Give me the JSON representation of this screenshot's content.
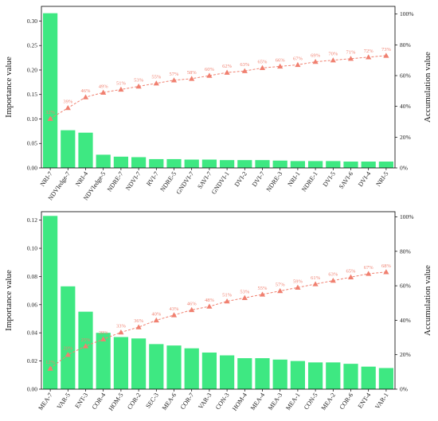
{
  "chart_data": [
    {
      "type": "bar",
      "ylabel": "Importance value",
      "y2label": "Accumulation value",
      "ylim": [
        0,
        0.33
      ],
      "yticks": [
        0.0,
        0.05,
        0.1,
        0.15,
        0.2,
        0.25,
        0.3
      ],
      "ytick_labels": [
        "0.00",
        "0.05",
        "0.10",
        "0.15",
        "0.20",
        "0.25",
        "0.30"
      ],
      "y2lim": [
        0,
        1.05
      ],
      "y2ticks": [
        0,
        0.2,
        0.4,
        0.6,
        0.8,
        1.0
      ],
      "y2tick_labels": [
        "0%",
        "20%",
        "40%",
        "60%",
        "80%",
        "100%"
      ],
      "categories": [
        "NRI-7",
        "NDVIedge-7",
        "NRI-4",
        "NDVIedge-5",
        "NDRE-7",
        "NDVI-7",
        "RVI-7",
        "NDRE-5",
        "GNDVI-7",
        "SAVI-7",
        "GNDVI-1",
        "DVI-2",
        "DVI-7",
        "NDRE-3",
        "NRI-1",
        "NDRE-1",
        "DVI-5",
        "SAVI-6",
        "DVI-4",
        "NRI-5"
      ],
      "values": [
        0.316,
        0.077,
        0.072,
        0.027,
        0.023,
        0.022,
        0.018,
        0.018,
        0.017,
        0.017,
        0.016,
        0.016,
        0.016,
        0.015,
        0.014,
        0.014,
        0.014,
        0.013,
        0.013,
        0.013
      ],
      "cumulative_labels": [
        "32%",
        "39%",
        "46%",
        "49%",
        "51%",
        "53%",
        "55%",
        "57%",
        "58%",
        "60%",
        "62%",
        "63%",
        "65%",
        "66%",
        "67%",
        "69%",
        "70%",
        "71%",
        "72%",
        "73%"
      ],
      "cumulative": [
        0.32,
        0.39,
        0.46,
        0.49,
        0.51,
        0.53,
        0.55,
        0.57,
        0.58,
        0.6,
        0.62,
        0.63,
        0.65,
        0.66,
        0.67,
        0.69,
        0.7,
        0.71,
        0.72,
        0.73
      ],
      "bar_color": "#3ee882",
      "line_color": "#f08070",
      "grid": false
    },
    {
      "type": "bar",
      "ylabel": "Importance value",
      "y2label": "Accumulation value",
      "ylim": [
        0,
        0.126
      ],
      "yticks": [
        0.0,
        0.02,
        0.04,
        0.06,
        0.08,
        0.1,
        0.12
      ],
      "ytick_labels": [
        "0.00",
        "0.02",
        "0.04",
        "0.06",
        "0.08",
        "0.10",
        "0.12"
      ],
      "y2lim": [
        0,
        1.03
      ],
      "y2ticks": [
        0,
        0.2,
        0.4,
        0.6,
        0.8,
        1.0
      ],
      "y2tick_labels": [
        "0%",
        "20%",
        "40%",
        "60%",
        "80%",
        "100%"
      ],
      "categories": [
        "MEA-7",
        "VAR-5",
        "ENT-3",
        "COR-4",
        "HOM-5",
        "COR-2",
        "SEC-3",
        "MEA-6",
        "COR-7",
        "VAR-3",
        "CON-3",
        "HOM-4",
        "MEA-4",
        "MEA-3",
        "MEA-1",
        "CON-5",
        "MEA-2",
        "COR-6",
        "ENT-4",
        "VAR-1"
      ],
      "values": [
        0.123,
        0.073,
        0.055,
        0.04,
        0.037,
        0.036,
        0.032,
        0.031,
        0.029,
        0.026,
        0.024,
        0.022,
        0.022,
        0.021,
        0.02,
        0.019,
        0.019,
        0.018,
        0.016,
        0.015
      ],
      "cumulative_labels": [
        "12%",
        "20%",
        "25%",
        "29%",
        "33%",
        "36%",
        "40%",
        "43%",
        "46%",
        "48%",
        "51%",
        "53%",
        "55%",
        "57%",
        "59%",
        "61%",
        "63%",
        "65%",
        "67%",
        "68%"
      ],
      "cumulative": [
        0.12,
        0.2,
        0.25,
        0.29,
        0.33,
        0.36,
        0.4,
        0.43,
        0.46,
        0.48,
        0.51,
        0.53,
        0.55,
        0.57,
        0.59,
        0.61,
        0.63,
        0.65,
        0.67,
        0.68
      ],
      "bar_color": "#3ee882",
      "line_color": "#f08070",
      "grid": false
    }
  ]
}
